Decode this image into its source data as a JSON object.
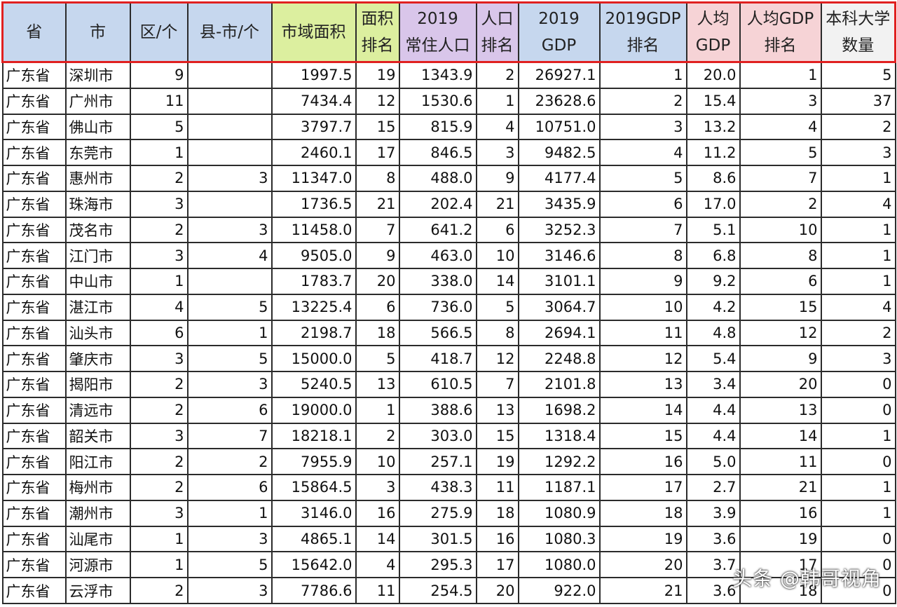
{
  "headers": [
    {
      "l1": "省",
      "l2": ""
    },
    {
      "l1": "市",
      "l2": ""
    },
    {
      "l1": "区/个",
      "l2": ""
    },
    {
      "l1": "县-市/个",
      "l2": ""
    },
    {
      "l1": "市域面积",
      "l2": ""
    },
    {
      "l1": "面积",
      "l2": "排名"
    },
    {
      "l1": "2019",
      "l2": "常住人口"
    },
    {
      "l1": "人口",
      "l2": "排名"
    },
    {
      "l1": "2019",
      "l2": "GDP"
    },
    {
      "l1": "2019GDP",
      "l2": "排名"
    },
    {
      "l1": "人均",
      "l2": "GDP"
    },
    {
      "l1": "人均GDP",
      "l2": "排名"
    },
    {
      "l1": "本科大学",
      "l2": "数量"
    }
  ],
  "rows": [
    [
      "广东省",
      "深圳市",
      "9",
      "",
      "1997.5",
      "19",
      "1343.9",
      "2",
      "26927.1",
      "1",
      "20.0",
      "1",
      "5"
    ],
    [
      "广东省",
      "广州市",
      "11",
      "",
      "7434.4",
      "12",
      "1530.6",
      "1",
      "23628.6",
      "2",
      "15.4",
      "3",
      "37"
    ],
    [
      "广东省",
      "佛山市",
      "5",
      "",
      "3797.7",
      "15",
      "815.9",
      "4",
      "10751.0",
      "3",
      "13.2",
      "4",
      "2"
    ],
    [
      "广东省",
      "东莞市",
      "1",
      "",
      "2460.1",
      "17",
      "846.5",
      "3",
      "9482.5",
      "4",
      "11.2",
      "5",
      "3"
    ],
    [
      "广东省",
      "惠州市",
      "2",
      "3",
      "11347.0",
      "8",
      "488.0",
      "9",
      "4177.4",
      "5",
      "8.6",
      "7",
      "1"
    ],
    [
      "广东省",
      "珠海市",
      "3",
      "",
      "1736.5",
      "21",
      "202.4",
      "21",
      "3435.9",
      "6",
      "17.0",
      "2",
      "4"
    ],
    [
      "广东省",
      "茂名市",
      "2",
      "3",
      "11458.0",
      "7",
      "641.2",
      "6",
      "3252.3",
      "7",
      "5.1",
      "10",
      "1"
    ],
    [
      "广东省",
      "江门市",
      "3",
      "4",
      "9505.0",
      "9",
      "463.0",
      "10",
      "3146.6",
      "8",
      "6.8",
      "8",
      "1"
    ],
    [
      "广东省",
      "中山市",
      "1",
      "",
      "1783.7",
      "20",
      "338.0",
      "14",
      "3101.1",
      "9",
      "9.2",
      "6",
      "1"
    ],
    [
      "广东省",
      "湛江市",
      "4",
      "5",
      "13225.4",
      "6",
      "736.0",
      "5",
      "3064.7",
      "10",
      "4.2",
      "15",
      "4"
    ],
    [
      "广东省",
      "汕头市",
      "6",
      "1",
      "2198.7",
      "18",
      "566.5",
      "8",
      "2694.1",
      "11",
      "4.8",
      "12",
      "2"
    ],
    [
      "广东省",
      "肇庆市",
      "3",
      "5",
      "15000.0",
      "5",
      "418.7",
      "12",
      "2248.8",
      "12",
      "5.4",
      "9",
      "3"
    ],
    [
      "广东省",
      "揭阳市",
      "2",
      "3",
      "5240.5",
      "13",
      "610.5",
      "7",
      "2101.8",
      "13",
      "3.4",
      "20",
      "0"
    ],
    [
      "广东省",
      "清远市",
      "2",
      "6",
      "19000.0",
      "1",
      "388.6",
      "13",
      "1698.2",
      "14",
      "4.4",
      "13",
      "0"
    ],
    [
      "广东省",
      "韶关市",
      "3",
      "7",
      "18218.1",
      "2",
      "303.0",
      "15",
      "1318.4",
      "15",
      "4.4",
      "14",
      "1"
    ],
    [
      "广东省",
      "阳江市",
      "2",
      "2",
      "7955.9",
      "10",
      "257.1",
      "19",
      "1292.2",
      "16",
      "5.0",
      "11",
      "0"
    ],
    [
      "广东省",
      "梅州市",
      "2",
      "6",
      "15864.5",
      "3",
      "438.3",
      "11",
      "1187.1",
      "17",
      "2.7",
      "21",
      "1"
    ],
    [
      "广东省",
      "潮州市",
      "3",
      "1",
      "3146.0",
      "16",
      "275.9",
      "18",
      "1080.9",
      "18",
      "3.9",
      "16",
      "1"
    ],
    [
      "广东省",
      "汕尾市",
      "1",
      "3",
      "4865.1",
      "14",
      "301.5",
      "16",
      "1080.3",
      "19",
      "3.6",
      "19",
      "0"
    ],
    [
      "广东省",
      "河源市",
      "1",
      "5",
      "15642.0",
      "4",
      "295.3",
      "17",
      "1080.0",
      "20",
      "3.7",
      "17",
      "0"
    ],
    [
      "广东省",
      "云浮市",
      "2",
      "3",
      "7786.6",
      "11",
      "254.5",
      "20",
      "922.0",
      "21",
      "3.6",
      "18",
      "0"
    ]
  ],
  "watermark": "头条 @韩哥视角",
  "colors": {
    "header_blue": "#c6d7ee",
    "header_green": "#dcef9f",
    "header_purple": "#d9c6ea",
    "header_pink": "#f6d3d6",
    "header_border": "#e02020"
  }
}
